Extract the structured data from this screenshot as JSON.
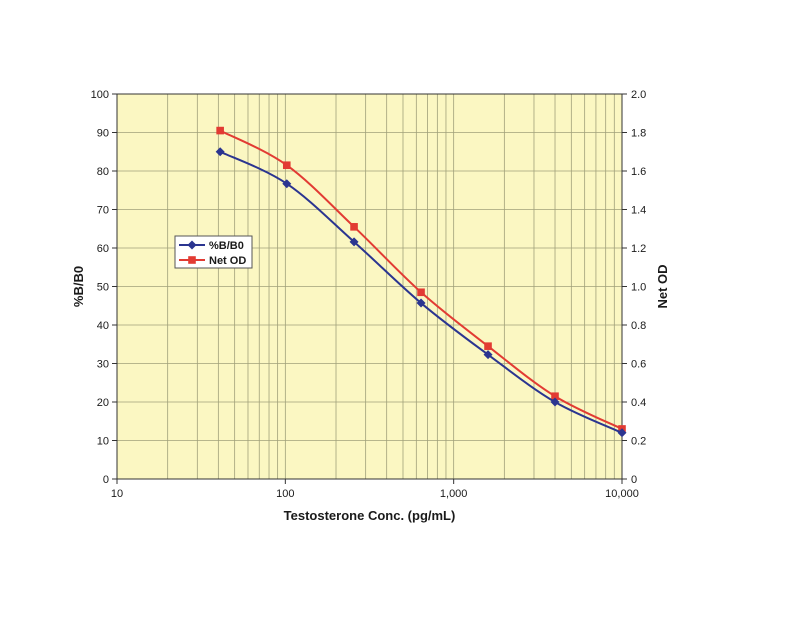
{
  "chart_data": {
    "type": "line",
    "title": "",
    "xlabel": "Testosterone Conc. (pg/mL)",
    "ylabel": "%B/B0",
    "y2label": "Net OD",
    "xscale": "log",
    "xlim": [
      10,
      10000
    ],
    "ylim": [
      0,
      100
    ],
    "y2lim": [
      0,
      2.0
    ],
    "x_tick_labels": [
      "10",
      "100",
      "1,000",
      "10,000"
    ],
    "y_tick_labels": [
      "0",
      "10",
      "20",
      "30",
      "40",
      "50",
      "60",
      "70",
      "80",
      "90",
      "100"
    ],
    "y2_tick_labels": [
      "0",
      "0.2",
      "0.4",
      "0.6",
      "0.8",
      "1.0",
      "1.2",
      "1.4",
      "1.6",
      "1.8",
      "2.0"
    ],
    "grid": true,
    "legend_position": "left",
    "series": [
      {
        "name": "%B/B0",
        "axis": "left",
        "marker": "diamond",
        "color": "#2b3590",
        "x": [
          41,
          102,
          256,
          640,
          1600,
          4000,
          10000
        ],
        "y": [
          85.0,
          76.7,
          61.6,
          45.7,
          32.3,
          20.0,
          12.0
        ]
      },
      {
        "name": "Net OD",
        "axis": "right",
        "marker": "square",
        "color": "#e23b33",
        "x": [
          41,
          102,
          256,
          640,
          1600,
          4000,
          10000
        ],
        "y": [
          1.81,
          1.63,
          1.31,
          0.97,
          0.69,
          0.43,
          0.26
        ]
      }
    ]
  },
  "colors": {
    "plot_background": "#fbf7c2",
    "grid": "#a0a07a",
    "axis": "#333333"
  }
}
